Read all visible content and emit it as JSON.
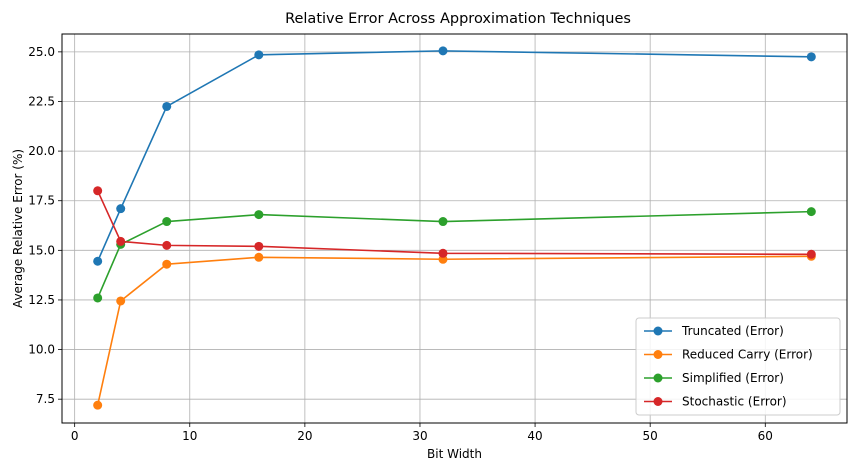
{
  "chart_data": {
    "type": "line",
    "title": "Relative Error Across Approximation Techniques",
    "xlabel": "Bit Width",
    "ylabel": "Average Relative Error (%)",
    "x": [
      2,
      4,
      8,
      16,
      32,
      64
    ],
    "xlim": [
      -1.1,
      67.1
    ],
    "ylim": [
      6.3,
      25.9
    ],
    "xticks": [
      0,
      10,
      20,
      30,
      40,
      50,
      60
    ],
    "xtick_labels": [
      "0",
      "10",
      "20",
      "30",
      "40",
      "50",
      "60"
    ],
    "yticks": [
      7.5,
      10.0,
      12.5,
      15.0,
      17.5,
      20.0,
      22.5,
      25.0
    ],
    "ytick_labels": [
      "7.5",
      "10.0",
      "12.5",
      "15.0",
      "17.5",
      "20.0",
      "22.5",
      "25.0"
    ],
    "grid": true,
    "legend_position": "lower-right",
    "series": [
      {
        "name": "Truncated (Error)",
        "color": "#1f77b4",
        "values": [
          14.45,
          17.1,
          22.25,
          24.85,
          25.05,
          24.75
        ]
      },
      {
        "name": "Reduced Carry (Error)",
        "color": "#ff7f0e",
        "values": [
          7.2,
          12.45,
          14.3,
          14.65,
          14.55,
          14.7
        ]
      },
      {
        "name": "Simplified (Error)",
        "color": "#2ca02c",
        "values": [
          12.6,
          15.3,
          16.45,
          16.8,
          16.45,
          16.95
        ]
      },
      {
        "name": "Stochastic (Error)",
        "color": "#d62728",
        "values": [
          18.0,
          15.45,
          15.25,
          15.2,
          14.85,
          14.8
        ]
      }
    ]
  }
}
